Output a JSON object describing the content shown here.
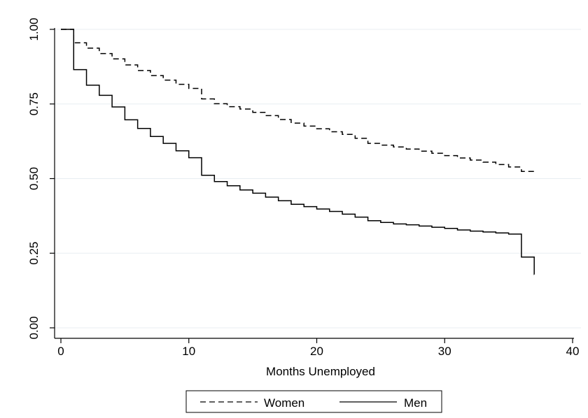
{
  "chart_data": {
    "type": "line",
    "line_shape": "step",
    "title": "",
    "xlabel": "Months Unemployed",
    "ylabel": "",
    "xlim": [
      0,
      40
    ],
    "ylim": [
      0,
      1
    ],
    "xticks": [
      0,
      10,
      20,
      30,
      40
    ],
    "xtick_labels": [
      "0",
      "10",
      "20",
      "30",
      "40"
    ],
    "yticks": [
      0,
      0.25,
      0.5,
      0.75,
      1
    ],
    "ytick_labels": [
      "0.00",
      "0.25",
      "0.50",
      "0.75",
      "1.00"
    ],
    "grid": "horizontal",
    "legend_position": "bottom",
    "series": [
      {
        "name": "Women",
        "line_style": "dashed",
        "color": "#000000",
        "x": [
          0,
          1,
          2,
          3,
          4,
          5,
          6,
          7,
          8,
          9,
          10,
          11,
          12,
          13,
          14,
          15,
          16,
          17,
          18,
          19,
          20,
          21,
          22,
          23,
          24,
          25,
          26,
          27,
          28,
          29,
          30,
          31,
          32,
          33,
          34,
          35,
          36,
          37
        ],
        "y": [
          1.0,
          0.955,
          0.937,
          0.919,
          0.901,
          0.881,
          0.862,
          0.845,
          0.83,
          0.816,
          0.802,
          0.767,
          0.751,
          0.741,
          0.733,
          0.722,
          0.711,
          0.698,
          0.686,
          0.676,
          0.667,
          0.657,
          0.648,
          0.635,
          0.618,
          0.612,
          0.606,
          0.599,
          0.592,
          0.585,
          0.577,
          0.569,
          0.562,
          0.555,
          0.547,
          0.539,
          0.524,
          0.516
        ]
      },
      {
        "name": "Men",
        "line_style": "solid",
        "color": "#000000",
        "x": [
          0,
          1,
          2,
          3,
          4,
          5,
          6,
          7,
          8,
          9,
          10,
          11,
          12,
          13,
          14,
          15,
          16,
          17,
          18,
          19,
          20,
          21,
          22,
          23,
          24,
          25,
          26,
          27,
          28,
          29,
          30,
          31,
          32,
          33,
          34,
          35,
          36,
          37
        ],
        "y": [
          1.0,
          0.865,
          0.813,
          0.779,
          0.74,
          0.697,
          0.668,
          0.641,
          0.618,
          0.593,
          0.57,
          0.511,
          0.49,
          0.476,
          0.462,
          0.451,
          0.438,
          0.426,
          0.414,
          0.406,
          0.398,
          0.39,
          0.381,
          0.371,
          0.359,
          0.353,
          0.348,
          0.345,
          0.341,
          0.337,
          0.333,
          0.328,
          0.324,
          0.321,
          0.318,
          0.314,
          0.237,
          0.179
        ]
      }
    ]
  }
}
